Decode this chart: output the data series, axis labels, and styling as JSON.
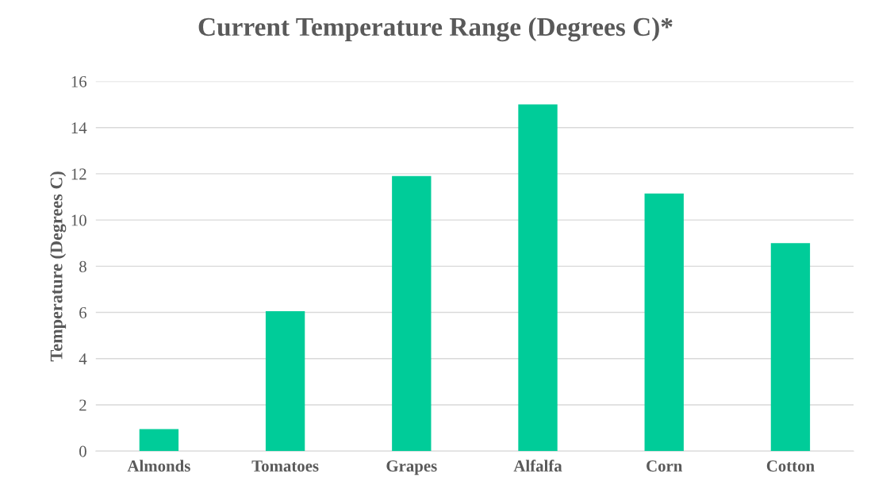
{
  "chart_data": {
    "type": "bar",
    "title": "Current Temperature Range (Degrees C)*",
    "ylabel": "Temperature (Degrees C)",
    "categories": [
      "Almonds",
      "Tomatoes",
      "Grapes",
      "Alfalfa",
      "Corn",
      "Cotton"
    ],
    "values": [
      0.95,
      6.05,
      11.9,
      15.0,
      11.15,
      9.0
    ],
    "color": "#00cc99",
    "ylim": [
      0,
      16
    ],
    "yticks": [
      0,
      2,
      4,
      6,
      8,
      10,
      12,
      14,
      16
    ],
    "grid": "y"
  }
}
